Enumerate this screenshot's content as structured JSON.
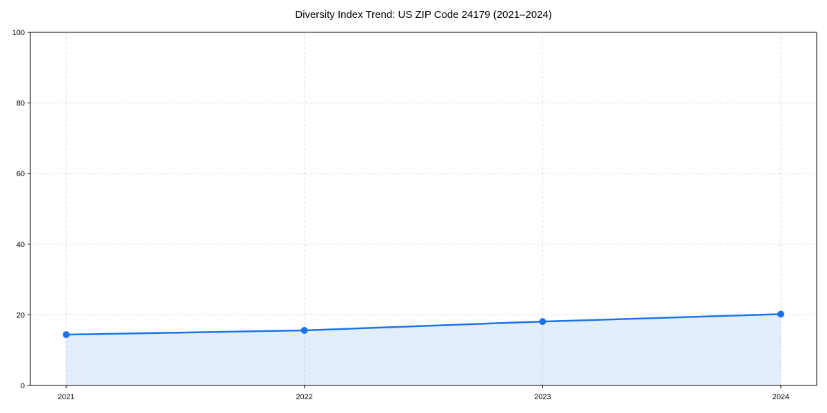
{
  "chart_data": {
    "type": "line",
    "title": "Diversity Index Trend: US ZIP Code 24179 (2021–2024)",
    "categories": [
      "2021",
      "2022",
      "2023",
      "2024"
    ],
    "x": [
      2021,
      2022,
      2023,
      2024
    ],
    "series": [
      {
        "name": "Diversity Index",
        "values": [
          14.4,
          15.6,
          18.1,
          20.2
        ]
      }
    ],
    "xlabel": "",
    "ylabel": "",
    "ylim": [
      0,
      100
    ],
    "yticks": [
      0,
      20,
      40,
      60,
      80,
      100
    ],
    "grid": true,
    "grid_style": "dashed",
    "legend_position": "none",
    "area_fill": true,
    "markers": true,
    "colors": {
      "line": "#1a73e8",
      "marker": "#1a73e8",
      "area": "rgba(26,115,232,0.12)",
      "grid": "#e0e0e0",
      "axis": "#000000",
      "text": "#000000",
      "background": "#ffffff"
    }
  }
}
